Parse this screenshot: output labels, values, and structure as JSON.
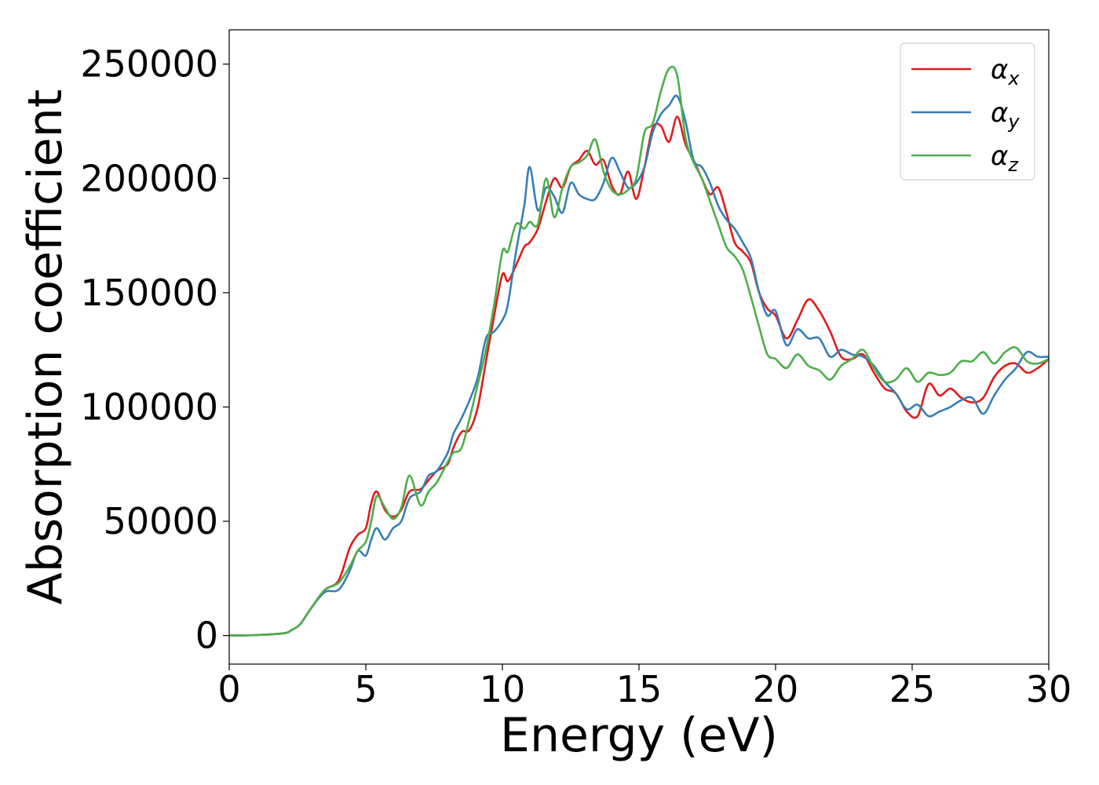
{
  "chart_data": {
    "type": "line",
    "xlabel": "Energy (eV)",
    "ylabel": "Absorption coefficient",
    "xlim": [
      0,
      30
    ],
    "ylim": [
      -12500,
      265000
    ],
    "xticks": [
      0,
      5,
      10,
      15,
      20,
      25,
      30
    ],
    "yticks": [
      0,
      50000,
      100000,
      150000,
      200000,
      250000
    ],
    "grid": false,
    "legend": "top-right",
    "series": [
      {
        "name": "α_x",
        "label_main": "α",
        "label_sub": "x",
        "color": "#e41a1c",
        "x": [
          0,
          1,
          2,
          2.3,
          2.6,
          3,
          3.5,
          4,
          4.4,
          4.7,
          5,
          5.2,
          5.4,
          5.7,
          6,
          6.3,
          6.6,
          7,
          7.3,
          7.6,
          8,
          8.2,
          8.5,
          8.8,
          9.1,
          9.4,
          9.7,
          10,
          10.2,
          10.5,
          10.8,
          11,
          11.3,
          11.6,
          11.9,
          12.2,
          12.5,
          12.8,
          13.1,
          13.4,
          13.7,
          14,
          14.3,
          14.6,
          14.9,
          15.2,
          15.5,
          15.8,
          16.1,
          16.4,
          16.7,
          17,
          17.3,
          17.6,
          17.9,
          18.2,
          18.5,
          18.8,
          19.1,
          19.4,
          19.7,
          20,
          20.4,
          20.8,
          21.2,
          21.6,
          22,
          22.4,
          22.8,
          23.2,
          23.6,
          24,
          24.4,
          24.8,
          25.2,
          25.6,
          26,
          26.4,
          26.8,
          27.2,
          27.6,
          28,
          28.4,
          28.8,
          29.2,
          29.6,
          30
        ],
        "y": [
          0,
          200,
          1000,
          2500,
          5000,
          12000,
          20000,
          24000,
          38000,
          44000,
          47000,
          58000,
          63000,
          55000,
          52000,
          55000,
          63000,
          64000,
          68000,
          72000,
          75000,
          82000,
          89000,
          90000,
          100000,
          120000,
          140000,
          158000,
          155000,
          162000,
          170000,
          172000,
          178000,
          190000,
          200000,
          196000,
          205000,
          208000,
          212000,
          206000,
          208000,
          197000,
          193000,
          203000,
          191000,
          205000,
          222000,
          223000,
          216000,
          227000,
          215000,
          208000,
          200000,
          193000,
          196000,
          185000,
          172000,
          168000,
          163000,
          150000,
          143000,
          140000,
          130000,
          138000,
          147000,
          142000,
          133000,
          122000,
          121000,
          123000,
          115000,
          108000,
          106000,
          98000,
          96000,
          110000,
          105000,
          108000,
          104000,
          102000,
          104000,
          113000,
          118000,
          119000,
          115000,
          117000,
          121000
        ]
      },
      {
        "name": "α_y",
        "label_main": "α",
        "label_sub": "y",
        "color": "#377eb8",
        "x": [
          0,
          1,
          2,
          2.3,
          2.6,
          3,
          3.5,
          4,
          4.4,
          4.7,
          5,
          5.2,
          5.4,
          5.7,
          6,
          6.3,
          6.6,
          7,
          7.3,
          7.6,
          8,
          8.2,
          8.5,
          8.8,
          9.1,
          9.4,
          9.7,
          10,
          10.2,
          10.5,
          10.8,
          11,
          11.3,
          11.6,
          11.9,
          12.2,
          12.5,
          12.8,
          13.1,
          13.4,
          13.7,
          14,
          14.3,
          14.6,
          14.9,
          15.2,
          15.5,
          15.8,
          16.1,
          16.4,
          16.7,
          17,
          17.3,
          17.6,
          17.9,
          18.2,
          18.5,
          18.8,
          19.1,
          19.4,
          19.7,
          20,
          20.4,
          20.8,
          21.2,
          21.6,
          22,
          22.4,
          22.8,
          23.2,
          23.6,
          24,
          24.4,
          24.8,
          25.2,
          25.6,
          26,
          26.4,
          26.8,
          27.2,
          27.6,
          28,
          28.4,
          28.8,
          29.2,
          29.6,
          30
        ],
        "y": [
          0,
          200,
          1000,
          2500,
          5000,
          12000,
          19000,
          20000,
          28000,
          37000,
          35000,
          42000,
          47000,
          42000,
          47000,
          50000,
          60000,
          63000,
          70000,
          72000,
          80000,
          88000,
          95000,
          103000,
          113000,
          130000,
          133000,
          138000,
          145000,
          168000,
          188000,
          205000,
          186000,
          196000,
          192000,
          185000,
          198000,
          193000,
          191000,
          191000,
          198000,
          209000,
          203000,
          196000,
          198000,
          205000,
          220000,
          228000,
          232000,
          236000,
          225000,
          208000,
          205000,
          198000,
          188000,
          182000,
          178000,
          172000,
          165000,
          150000,
          140000,
          142000,
          127000,
          134000,
          130000,
          130000,
          122000,
          125000,
          123000,
          122000,
          118000,
          111000,
          106000,
          99000,
          101000,
          96000,
          98000,
          100000,
          103000,
          104000,
          97000,
          105000,
          112000,
          117000,
          124000,
          122000,
          122000
        ]
      },
      {
        "name": "α_z",
        "label_main": "α",
        "label_sub": "z",
        "color": "#4daf4a",
        "x": [
          0,
          1,
          2,
          2.3,
          2.6,
          3,
          3.5,
          4,
          4.4,
          4.7,
          5,
          5.2,
          5.4,
          5.7,
          6,
          6.3,
          6.6,
          7,
          7.3,
          7.6,
          8,
          8.2,
          8.5,
          8.8,
          9.1,
          9.4,
          9.7,
          10,
          10.2,
          10.5,
          10.8,
          11,
          11.3,
          11.6,
          11.9,
          12.2,
          12.5,
          12.8,
          13.1,
          13.4,
          13.7,
          14,
          14.3,
          14.6,
          14.9,
          15.2,
          15.5,
          15.8,
          16.1,
          16.4,
          16.7,
          17,
          17.3,
          17.6,
          17.9,
          18.2,
          18.5,
          18.8,
          19.1,
          19.4,
          19.7,
          20,
          20.4,
          20.8,
          21.2,
          21.6,
          22,
          22.4,
          22.8,
          23.2,
          23.6,
          24,
          24.4,
          24.8,
          25.2,
          25.6,
          26,
          26.4,
          26.8,
          27.2,
          27.6,
          28,
          28.4,
          28.8,
          29.2,
          29.6,
          30
        ],
        "y": [
          0,
          200,
          1000,
          2500,
          5000,
          12000,
          20000,
          23000,
          30000,
          37000,
          41000,
          50000,
          61000,
          56000,
          51000,
          56000,
          70000,
          57000,
          63000,
          67000,
          76000,
          80000,
          82000,
          95000,
          110000,
          125000,
          145000,
          168000,
          168000,
          180000,
          178000,
          181000,
          180000,
          200000,
          183000,
          196000,
          205000,
          207000,
          210000,
          217000,
          203000,
          195000,
          193000,
          195000,
          200000,
          220000,
          224000,
          238000,
          248000,
          245000,
          218000,
          207000,
          200000,
          190000,
          180000,
          170000,
          166000,
          160000,
          148000,
          135000,
          123000,
          121000,
          117000,
          123000,
          118000,
          116000,
          112000,
          118000,
          121000,
          125000,
          117000,
          111000,
          112000,
          117000,
          111000,
          115000,
          114000,
          115000,
          120000,
          120000,
          124000,
          119000,
          124000,
          126000,
          120000,
          119000,
          121000
        ]
      }
    ]
  }
}
